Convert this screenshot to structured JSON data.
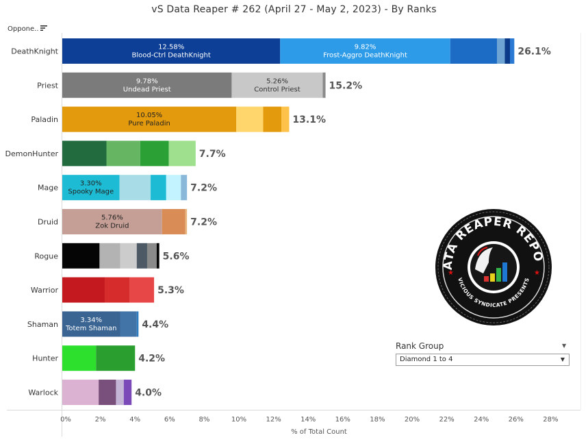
{
  "title": "vS Data Reaper #  262 (April 27 - May 2, 2023) - By Ranks",
  "sort_label": "Oppone..",
  "rank_group": {
    "title": "Rank Group",
    "selected": "Diamond 1 to 4"
  },
  "logo": {
    "top_text": "DATA REAPER REPORT",
    "bottom_text": "VICIOUS SYNDICATE PRESENTS",
    "icon": "reaper-bar-chart-logo"
  },
  "chart_data": {
    "type": "bar",
    "orientation": "horizontal",
    "stacked": true,
    "xlabel": "% of Total Count",
    "xlim": [
      0,
      29
    ],
    "x_ticks": [
      "0%",
      "2%",
      "4%",
      "6%",
      "8%",
      "10%",
      "12%",
      "14%",
      "16%",
      "18%",
      "20%",
      "22%",
      "24%",
      "26%",
      "28%"
    ],
    "grid": false,
    "categories": [
      {
        "name": "DeathKnight",
        "total_label": "26.1%",
        "segments": [
          {
            "value": 12.58,
            "color": "#0c3f95",
            "label_pct": "12.58%",
            "label_name": "Blood-Ctrl DeathKnight",
            "text_color": "#ffffff"
          },
          {
            "value": 9.82,
            "color": "#2d9be8",
            "label_pct": "9.82%",
            "label_name": "Frost-Aggro DeathKnight",
            "text_color": "#ffffff"
          },
          {
            "value": 2.7,
            "color": "#1c6cc6"
          },
          {
            "value": 0.45,
            "color": "#6ea4d4"
          },
          {
            "value": 0.3,
            "color": "#0b3a88"
          },
          {
            "value": 0.25,
            "color": "#2a7ad4"
          }
        ]
      },
      {
        "name": "Priest",
        "total_label": "15.2%",
        "segments": [
          {
            "value": 9.78,
            "color": "#7b7b7b",
            "label_pct": "9.78%",
            "label_name": "Undead Priest",
            "text_color": "#ffffff"
          },
          {
            "value": 5.26,
            "color": "#c8c8c8",
            "label_pct": "5.26%",
            "label_name": "Control Priest",
            "text_color": "#333333"
          },
          {
            "value": 0.16,
            "color": "#8a8a8a"
          }
        ]
      },
      {
        "name": "Paladin",
        "total_label": "13.1%",
        "segments": [
          {
            "value": 10.05,
            "color": "#e39a0c",
            "label_pct": "10.05%",
            "label_name": "Pure Paladin",
            "text_color": "#222222"
          },
          {
            "value": 1.55,
            "color": "#fed66b"
          },
          {
            "value": 1.05,
            "color": "#e39a0c"
          },
          {
            "value": 0.45,
            "color": "#fdc24a"
          }
        ]
      },
      {
        "name": "DemonHunter",
        "total_label": "7.7%",
        "segments": [
          {
            "value": 2.55,
            "color": "#216b3e"
          },
          {
            "value": 1.95,
            "color": "#66b562"
          },
          {
            "value": 1.65,
            "color": "#2aa035"
          },
          {
            "value": 1.55,
            "color": "#9ee08e"
          }
        ]
      },
      {
        "name": "Mage",
        "total_label": "7.2%",
        "segments": [
          {
            "value": 3.3,
            "color": "#1ebcd4",
            "label_pct": "3.30%",
            "label_name": "Spooky Mage",
            "text_color": "#222222"
          },
          {
            "value": 1.8,
            "color": "#a8dde8"
          },
          {
            "value": 0.9,
            "color": "#1ebcd4"
          },
          {
            "value": 0.85,
            "color": "#c2f3ff"
          },
          {
            "value": 0.35,
            "color": "#8ab8d8"
          }
        ]
      },
      {
        "name": "Druid",
        "total_label": "7.2%",
        "segments": [
          {
            "value": 5.76,
            "color": "#c59f96",
            "label_pct": "5.76%",
            "label_name": "Zok Druid",
            "text_color": "#222222"
          },
          {
            "value": 1.34,
            "color": "#d98c55"
          },
          {
            "value": 0.1,
            "color": "#e8b47e"
          }
        ]
      },
      {
        "name": "Rogue",
        "total_label": "5.6%",
        "segments": [
          {
            "value": 2.15,
            "color": "#050505"
          },
          {
            "value": 1.2,
            "color": "#b3b3b3"
          },
          {
            "value": 0.95,
            "color": "#cccccc"
          },
          {
            "value": 0.6,
            "color": "#4d5a66"
          },
          {
            "value": 0.55,
            "color": "#8a8a8a"
          },
          {
            "value": 0.15,
            "color": "#050505"
          }
        ]
      },
      {
        "name": "Warrior",
        "total_label": "5.3%",
        "segments": [
          {
            "value": 2.45,
            "color": "#c41a1f"
          },
          {
            "value": 1.45,
            "color": "#d72c2c"
          },
          {
            "value": 1.4,
            "color": "#e84747"
          }
        ]
      },
      {
        "name": "Shaman",
        "total_label": "4.4%",
        "segments": [
          {
            "value": 3.34,
            "color": "#3a6593",
            "label_pct": "3.34%",
            "label_name": "Totem Shaman",
            "text_color": "#ffffff"
          },
          {
            "value": 0.96,
            "color": "#4274a8"
          },
          {
            "value": 0.1,
            "color": "#2d7cc0"
          }
        ]
      },
      {
        "name": "Hunter",
        "total_label": "4.2%",
        "segments": [
          {
            "value": 1.95,
            "color": "#2ee02e"
          },
          {
            "value": 2.25,
            "color": "#2a9e2f"
          }
        ]
      },
      {
        "name": "Warlock",
        "total_label": "4.0%",
        "segments": [
          {
            "value": 2.1,
            "color": "#dcb2d2"
          },
          {
            "value": 1.0,
            "color": "#794f7b"
          },
          {
            "value": 0.45,
            "color": "#c4b4d6"
          },
          {
            "value": 0.45,
            "color": "#7c4ab8"
          }
        ]
      }
    ]
  }
}
